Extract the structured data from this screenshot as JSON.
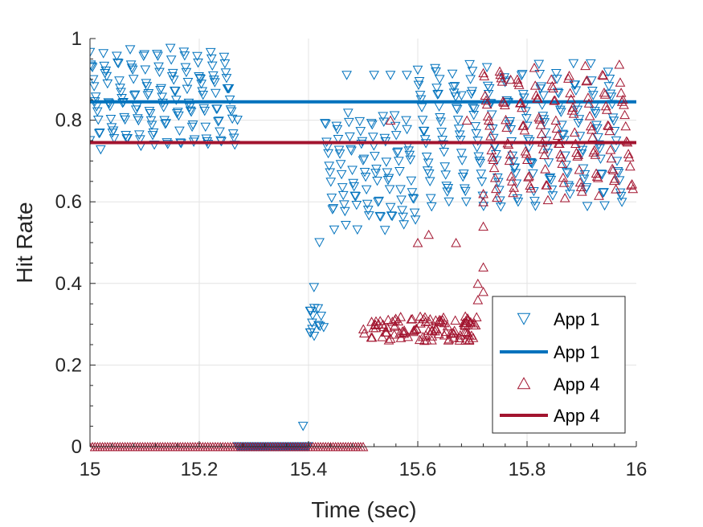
{
  "chart_data": {
    "type": "scatter",
    "title": "",
    "xlabel": "Time (sec)",
    "ylabel": "Hit Rate",
    "xlim": [
      15,
      16
    ],
    "ylim": [
      0,
      1
    ],
    "xticks": [
      15,
      15.2,
      15.4,
      15.6,
      15.8,
      16
    ],
    "xtick_labels": [
      "15",
      "15.2",
      "15.4",
      "15.6",
      "15.8",
      "16"
    ],
    "yticks": [
      0,
      0.2,
      0.4,
      0.6,
      0.8,
      1
    ],
    "ytick_labels": [
      "0",
      "0.2",
      "0.4",
      "0.6",
      "0.8",
      "1"
    ],
    "grid": true,
    "legend_position": "bottom-right",
    "legend": [
      {
        "label": "App 1",
        "kind": "marker",
        "series": "app1"
      },
      {
        "label": "App 1",
        "kind": "line",
        "series": "app1"
      },
      {
        "label": "App 4",
        "kind": "marker",
        "series": "app4"
      },
      {
        "label": "App 4",
        "kind": "line",
        "series": "app4"
      }
    ],
    "series": [
      {
        "id": "app1",
        "marker": "triangle-down",
        "color": "#0072BD",
        "mean": 0.845,
        "segments": [
          {
            "x0": 15.0,
            "x1": 15.27,
            "sweeps": 11,
            "ylo": 0.74,
            "yhi": 0.96,
            "pts": 14
          },
          {
            "x0": 15.27,
            "x1": 15.4,
            "zero": true,
            "pts": 60
          },
          {
            "x0": 15.4,
            "x1": 15.43,
            "ylo": 0.27,
            "yhi": 0.34,
            "pts": 14
          },
          {
            "x0": 15.43,
            "x1": 15.6,
            "sweeps": 8,
            "ylo": 0.55,
            "yhi": 0.8,
            "pts": 12
          },
          {
            "x0": 15.6,
            "x1": 15.98,
            "sweeps": 12,
            "ylo": 0.6,
            "yhi": 0.92,
            "pts": 18
          }
        ],
        "extra_points": [
          [
            15.0,
            0.75
          ],
          [
            15.39,
            0.05
          ],
          [
            15.41,
            0.39
          ],
          [
            15.42,
            0.5
          ],
          [
            15.47,
            0.91
          ],
          [
            15.52,
            0.91
          ],
          [
            15.55,
            0.91
          ],
          [
            15.58,
            0.91
          ],
          [
            15.7,
            0.92
          ],
          [
            15.64,
            0.9
          ],
          [
            15.68,
            0.86
          ],
          [
            15.83,
            0.86
          ],
          [
            15.27,
            0.8
          ],
          [
            15.54,
            0.53
          ]
        ]
      },
      {
        "id": "app4",
        "marker": "triangle-up",
        "color": "#A2142F",
        "mean": 0.745,
        "segments": [
          {
            "x0": 15.0,
            "x1": 15.5,
            "zero": true,
            "pts": 110
          },
          {
            "x0": 15.5,
            "x1": 15.71,
            "ylo": 0.26,
            "yhi": 0.32,
            "pts": 110
          },
          {
            "x0": 15.72,
            "x1": 16.0,
            "sweeps": 9,
            "ylo": 0.62,
            "yhi": 0.92,
            "pts": 16
          }
        ],
        "extra_points": [
          [
            15.6,
            0.5
          ],
          [
            15.67,
            0.5
          ],
          [
            15.62,
            0.52
          ],
          [
            15.72,
            0.54
          ],
          [
            15.72,
            0.44
          ],
          [
            15.72,
            0.38
          ],
          [
            15.71,
            0.36
          ],
          [
            15.71,
            0.4
          ],
          [
            15.72,
            0.6
          ],
          [
            15.72,
            0.62
          ],
          [
            15.69,
            0.8
          ],
          [
            15.55,
            0.8
          ],
          [
            15.77,
            0.9
          ],
          [
            15.75,
            0.92
          ]
        ]
      }
    ]
  }
}
